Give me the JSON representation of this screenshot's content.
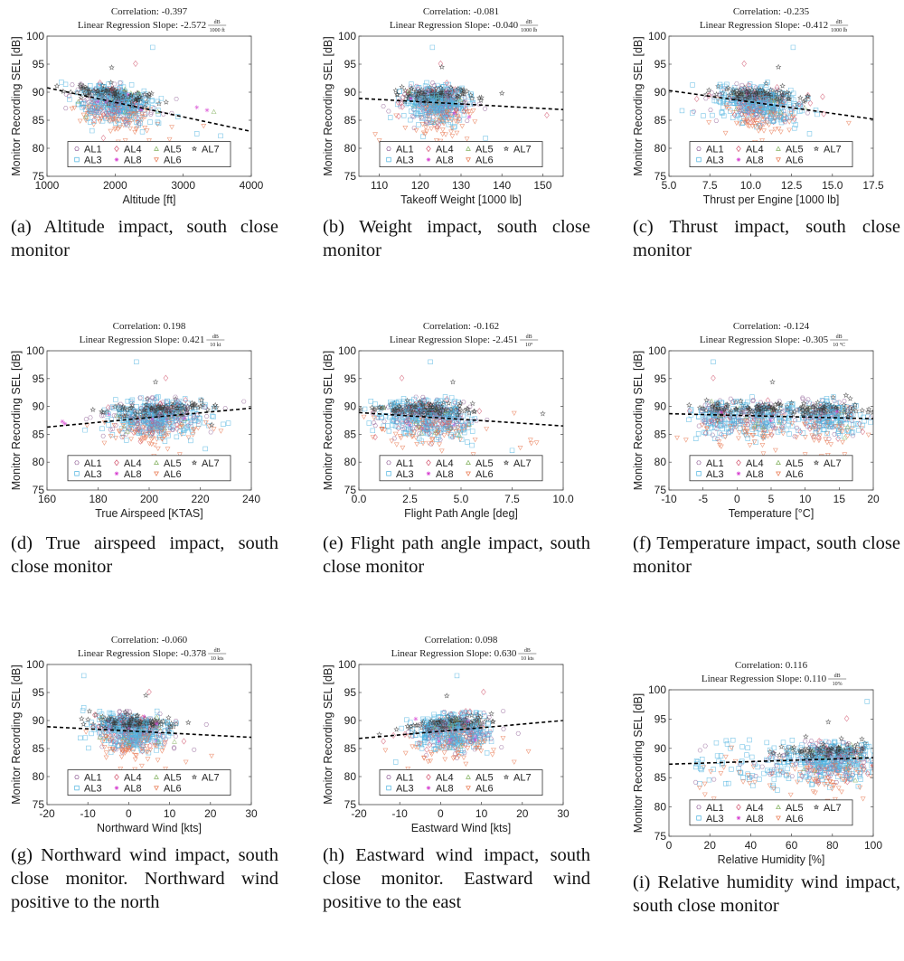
{
  "series_legend": [
    {
      "name": "AL1",
      "marker": "hexagon",
      "color": "#9b6fa0"
    },
    {
      "name": "AL4",
      "marker": "diamond",
      "color": "#d0506a"
    },
    {
      "name": "AL5",
      "marker": "triangle-up",
      "color": "#7fae5a"
    },
    {
      "name": "AL7",
      "marker": "star",
      "color": "#3a3a3a"
    },
    {
      "name": "AL3",
      "marker": "square",
      "color": "#4fb3e0"
    },
    {
      "name": "AL8",
      "marker": "asterisk",
      "color": "#d63fd0"
    },
    {
      "name": "AL6",
      "marker": "triangle-down",
      "color": "#e8774f"
    }
  ],
  "chart_data": [
    {
      "id": "a",
      "type": "scatter",
      "title_line1": "Correlation: -0.397",
      "title_line2": "Linear Regression Slope: -2.572",
      "title_unit_num": "dB",
      "title_unit_den": "1000 ft",
      "xlabel": "Altitude [ft]",
      "ylabel": "Monitor Recording SEL [dB]",
      "xlim": [
        1000,
        4000
      ],
      "ylim": [
        75,
        100
      ],
      "xticks": [
        1000,
        2000,
        3000,
        4000
      ],
      "xtick_labels": [
        "1000",
        "2000",
        "3000",
        "4000"
      ],
      "yticks": [
        75,
        80,
        85,
        90,
        95,
        100
      ],
      "cluster": {
        "x_center": 2000,
        "x_spread": 300,
        "y_center": 88,
        "y_spread": 2.0
      },
      "regression": {
        "x": [
          1000,
          4000
        ],
        "y": [
          90.8,
          83.0
        ]
      },
      "outliers": [
        [
          2550,
          98,
          "AL3"
        ],
        [
          2300,
          95.1,
          "AL4"
        ],
        [
          1950,
          94.4,
          "AL7"
        ],
        [
          3200,
          87.3,
          "AL8"
        ],
        [
          3350,
          86.8,
          "AL8"
        ],
        [
          3450,
          86.5,
          "AL5"
        ],
        [
          2900,
          88.8,
          "AL1"
        ],
        [
          3550,
          82.2,
          "AL3"
        ],
        [
          3200,
          82.6,
          "AL3"
        ],
        [
          3300,
          84,
          "AL6"
        ],
        [
          2500,
          81.4,
          "AL6"
        ],
        [
          2150,
          81.4,
          "AL6"
        ],
        [
          2800,
          81.6,
          "AL6"
        ]
      ],
      "caption": "(a) Altitude impact, south close monitor"
    },
    {
      "id": "b",
      "type": "scatter",
      "title_line1": "Correlation: -0.081",
      "title_line2": "Linear Regression Slope: -0.040",
      "title_unit_num": "dB",
      "title_unit_den": "1000 lb",
      "xlabel": "Takeoff Weight [1000 lb]",
      "ylabel": "Monitor Recording SEL [dB]",
      "xlim": [
        105,
        155
      ],
      "ylim": [
        75,
        100
      ],
      "xticks": [
        110,
        120,
        130,
        140,
        150
      ],
      "xtick_labels": [
        "110",
        "120",
        "130",
        "140",
        "150"
      ],
      "yticks": [
        75,
        80,
        85,
        90,
        95,
        100
      ],
      "cluster": {
        "x_center": 124,
        "x_spread": 4,
        "y_center": 88,
        "y_spread": 2.0
      },
      "regression": {
        "x": [
          105,
          155
        ],
        "y": [
          88.9,
          86.9
        ]
      },
      "outliers": [
        [
          123,
          98,
          "AL3"
        ],
        [
          125,
          95.1,
          "AL4"
        ],
        [
          125.3,
          94.5,
          "AL7"
        ],
        [
          140,
          89.8,
          "AL7"
        ],
        [
          151,
          85.9,
          "AL4"
        ],
        [
          136,
          81.8,
          "AL3"
        ],
        [
          109,
          82.5,
          "AL6"
        ],
        [
          110,
          81.4,
          "AL6"
        ],
        [
          124,
          81.4,
          "AL6"
        ],
        [
          125,
          81.3,
          "AL6"
        ],
        [
          111,
          87.5,
          "AL1"
        ],
        [
          114,
          90.3,
          "AL7"
        ]
      ],
      "caption": "(b) Weight impact, south close monitor"
    },
    {
      "id": "c",
      "type": "scatter",
      "title_line1": "Correlation: -0.235",
      "title_line2": "Linear Regression Slope: -0.412",
      "title_unit_num": "dB",
      "title_unit_den": "1000 lb",
      "xlabel": "Thrust per Engine [1000 lb]",
      "ylabel": "Monitor Recording SEL [dB]",
      "xlim": [
        5.0,
        17.5
      ],
      "ylim": [
        75,
        100
      ],
      "xticks": [
        5.0,
        7.5,
        10.0,
        12.5,
        15.0,
        17.5
      ],
      "xtick_labels": [
        "5.0",
        "7.5",
        "10.0",
        "12.5",
        "15.0",
        "17.5"
      ],
      "yticks": [
        75,
        80,
        85,
        90,
        95,
        100
      ],
      "cluster": {
        "x_center": 10.5,
        "x_spread": 1.2,
        "y_center": 88,
        "y_spread": 2.0
      },
      "regression": {
        "x": [
          5.0,
          17.5
        ],
        "y": [
          90.3,
          85.2
        ]
      },
      "outliers": [
        [
          12.6,
          98,
          "AL3"
        ],
        [
          9.6,
          95.1,
          "AL4"
        ],
        [
          11.7,
          94.5,
          "AL7"
        ],
        [
          5.8,
          86.7,
          "AL3"
        ],
        [
          7.1,
          85.8,
          "AL3"
        ],
        [
          6.7,
          88.8,
          "AL4"
        ],
        [
          14.4,
          89.2,
          "AL4"
        ],
        [
          16,
          84.5,
          "AL6"
        ],
        [
          13.6,
          82.6,
          "AL3"
        ],
        [
          10.7,
          81.4,
          "AL6"
        ],
        [
          7.9,
          84.9,
          "AL1"
        ]
      ],
      "caption": "(c) Thrust impact, south close monitor"
    },
    {
      "id": "d",
      "type": "scatter",
      "title_line1": "Correlation: 0.198",
      "title_line2": "Linear Regression Slope: 0.421",
      "title_unit_num": "dB",
      "title_unit_den": "10 kt",
      "xlabel": "True Airspeed [KTAS]",
      "ylabel": "Monitor Recording SEL [dB]",
      "xlim": [
        160,
        240
      ],
      "ylim": [
        75,
        100
      ],
      "xticks": [
        160,
        180,
        200,
        220,
        240
      ],
      "xtick_labels": [
        "160",
        "180",
        "200",
        "220",
        "240"
      ],
      "yticks": [
        75,
        80,
        85,
        90,
        95,
        100
      ],
      "cluster": {
        "x_center": 203,
        "x_spread": 9,
        "y_center": 88,
        "y_spread": 2.0
      },
      "regression": {
        "x": [
          160,
          240
        ],
        "y": [
          86.3,
          89.7
        ]
      },
      "outliers": [
        [
          195,
          98,
          "AL3"
        ],
        [
          206.5,
          95.1,
          "AL4"
        ],
        [
          202.5,
          94.4,
          "AL7"
        ],
        [
          166,
          87.3,
          "AL8"
        ],
        [
          167,
          86.9,
          "AL8"
        ],
        [
          177,
          88,
          "AL1"
        ],
        [
          182,
          84.7,
          "AL1"
        ],
        [
          231,
          87,
          "AL3"
        ],
        [
          229,
          86.8,
          "AL3"
        ],
        [
          222,
          82.4,
          "AL3"
        ],
        [
          212,
          81.4,
          "AL6"
        ],
        [
          224.5,
          86.7,
          "AL7"
        ]
      ],
      "caption": "(d) True airspeed impact, south close monitor"
    },
    {
      "id": "e",
      "type": "scatter",
      "title_line1": "Correlation: -0.162",
      "title_line2": "Linear Regression Slope: -2.451",
      "title_unit_num": "dB",
      "title_unit_den": "10°",
      "xlabel": "Flight Path Angle [deg]",
      "ylabel": "Monitor Recording SEL [dB]",
      "xlim": [
        0.0,
        10.0
      ],
      "ylim": [
        75,
        100
      ],
      "xticks": [
        0.0,
        2.5,
        5.0,
        7.5,
        10.0
      ],
      "xtick_labels": [
        "0.0",
        "2.5",
        "5.0",
        "7.5",
        "10.0"
      ],
      "yticks": [
        75,
        80,
        85,
        90,
        95,
        100
      ],
      "cluster": {
        "x_center": 3.3,
        "x_spread": 1.2,
        "y_center": 88,
        "y_spread": 2.0
      },
      "regression": {
        "x": [
          0.0,
          10.0
        ],
        "y": [
          88.9,
          86.5
        ]
      },
      "outliers": [
        [
          3.5,
          98,
          "AL3"
        ],
        [
          2.1,
          95.1,
          "AL4"
        ],
        [
          4.6,
          94.4,
          "AL7"
        ],
        [
          0.5,
          87,
          "AL3"
        ],
        [
          0.8,
          84.5,
          "AL4"
        ],
        [
          9,
          88.7,
          "AL7"
        ],
        [
          8.7,
          83.5,
          "AL6"
        ],
        [
          8.4,
          84,
          "AL6"
        ],
        [
          7.9,
          82.6,
          "AL6"
        ],
        [
          5.6,
          81.4,
          "AL6"
        ],
        [
          7.5,
          82.1,
          "AL3"
        ],
        [
          7.6,
          88.8,
          "AL6"
        ]
      ],
      "caption": "(e) Flight path angle impact, south close monitor"
    },
    {
      "id": "f",
      "type": "scatter",
      "title_line1": "Correlation: -0.124",
      "title_line2": "Linear Regression Slope: -0.305",
      "title_unit_num": "dB",
      "title_unit_den": "10 °C",
      "xlabel": "Temperature [°C]",
      "ylabel": "Monitor Recording SEL [dB]",
      "xlim": [
        -10,
        20
      ],
      "ylim": [
        75,
        100
      ],
      "xticks": [
        -10,
        -5,
        0,
        5,
        10,
        15,
        20
      ],
      "xtick_labels": [
        "-10",
        "-5",
        "0",
        "5",
        "10",
        "15",
        "20"
      ],
      "yticks": [
        75,
        80,
        85,
        90,
        95,
        100
      ],
      "cluster_groups": [
        {
          "x_center": -2,
          "x_spread": 2.5,
          "y_center": 88,
          "y_spread": 2.0
        },
        {
          "x_center": 4,
          "x_spread": 1.6,
          "y_center": 88,
          "y_spread": 2.0
        },
        {
          "x_center": 13,
          "x_spread": 3,
          "y_center": 88,
          "y_spread": 2.2
        }
      ],
      "regression": {
        "x": [
          -10,
          20
        ],
        "y": [
          88.7,
          87.8
        ]
      },
      "outliers": [
        [
          -3.5,
          98,
          "AL3"
        ],
        [
          -3.5,
          95.1,
          "AL4"
        ],
        [
          5.2,
          94.4,
          "AL7"
        ],
        [
          -8.8,
          84.4,
          "AL6"
        ],
        [
          -7.5,
          84,
          "AL6"
        ],
        [
          -7,
          89.2,
          "AL4"
        ],
        [
          16,
          92,
          "AL7"
        ],
        [
          15.8,
          81.4,
          "AL6"
        ],
        [
          10,
          81.4,
          "AL6"
        ],
        [
          19.3,
          84.9,
          "AL6"
        ]
      ],
      "caption": "(f) Temperature impact, south close monitor"
    },
    {
      "id": "g",
      "type": "scatter",
      "title_line1": "Correlation: -0.060",
      "title_line2": "Linear Regression Slope: -0.378",
      "title_unit_num": "dB",
      "title_unit_den": "10 kts",
      "xlabel": "Northward Wind [kts]",
      "ylabel": "Monitor Recording SEL [dB]",
      "xlim": [
        -20,
        30
      ],
      "ylim": [
        75,
        100
      ],
      "xticks": [
        -20,
        -10,
        0,
        10,
        20,
        30
      ],
      "xtick_labels": [
        "-20",
        "-10",
        "0",
        "10",
        "20",
        "30"
      ],
      "yticks": [
        75,
        80,
        85,
        90,
        95,
        100
      ],
      "cluster": {
        "x_center": 1,
        "x_spread": 4.5,
        "y_center": 88,
        "y_spread": 2.0
      },
      "regression": {
        "x": [
          -20,
          30
        ],
        "y": [
          88.9,
          87.0
        ]
      },
      "outliers": [
        [
          -11,
          98,
          "AL3"
        ],
        [
          5,
          95.1,
          "AL4"
        ],
        [
          4.2,
          94.5,
          "AL7"
        ],
        [
          -11,
          92.3,
          "AL3"
        ],
        [
          19,
          89.3,
          "AL1"
        ],
        [
          16,
          84.8,
          "AL1"
        ],
        [
          14,
          82.6,
          "AL6"
        ],
        [
          9,
          81.4,
          "AL6"
        ],
        [
          1.5,
          81.3,
          "AL6"
        ],
        [
          -2,
          81.4,
          "AL6"
        ],
        [
          13.5,
          86.3,
          "AL4"
        ]
      ],
      "caption": "(g) Northward wind impact, south close monitor. Northward wind positive to the north"
    },
    {
      "id": "h",
      "type": "scatter",
      "title_line1": "Correlation: 0.098",
      "title_line2": "Linear Regression Slope: 0.630",
      "title_unit_num": "dB",
      "title_unit_den": "10 kts",
      "xlabel": "Eastward Wind [kts]",
      "ylabel": "Monitor Recording SEL [dB]",
      "xlim": [
        -20,
        30
      ],
      "ylim": [
        75,
        100
      ],
      "xticks": [
        -20,
        -10,
        0,
        10,
        20,
        30
      ],
      "xtick_labels": [
        "-20",
        "-10",
        "0",
        "10",
        "20",
        "30"
      ],
      "yticks": [
        75,
        80,
        85,
        90,
        95,
        100
      ],
      "cluster": {
        "x_center": 3,
        "x_spread": 5,
        "y_center": 88,
        "y_spread": 2.0
      },
      "regression": {
        "x": [
          -20,
          30
        ],
        "y": [
          86.8,
          90.0
        ]
      },
      "outliers": [
        [
          4,
          98,
          "AL3"
        ],
        [
          10.5,
          95.1,
          "AL4"
        ],
        [
          1.5,
          94.4,
          "AL7"
        ],
        [
          -14,
          86.3,
          "AL4"
        ],
        [
          -13.5,
          84.7,
          "AL6"
        ],
        [
          -11,
          82.6,
          "AL3"
        ],
        [
          -8,
          81.4,
          "AL6"
        ],
        [
          21.5,
          84.5,
          "AL6"
        ],
        [
          18,
          82.6,
          "AL6"
        ],
        [
          19,
          87.7,
          "AL1"
        ],
        [
          -15,
          87.5,
          "AL7"
        ]
      ],
      "caption": "(h) Eastward wind impact, south close monitor. Eastward wind positive to the east"
    },
    {
      "id": "i",
      "type": "scatter",
      "title_line1": "Correlation: 0.116",
      "title_line2": "Linear Regression Slope: 0.110",
      "title_unit_num": "dB",
      "title_unit_den": "10%",
      "xlabel": "Relative Humidity [%]",
      "ylabel": "Monitor Recording SEL [dB]",
      "xlim": [
        0,
        100
      ],
      "ylim": [
        75,
        100
      ],
      "xticks": [
        0,
        20,
        40,
        60,
        80,
        100
      ],
      "xtick_labels": [
        "0",
        "20",
        "40",
        "60",
        "80",
        "100"
      ],
      "yticks": [
        75,
        80,
        85,
        90,
        95,
        100
      ],
      "cluster": {
        "x_center": 80,
        "x_spread": 12,
        "y_center": 88,
        "y_spread": 2.2
      },
      "cluster_sparse": {
        "x_center": 35,
        "x_spread": 14,
        "y_center": 87,
        "y_spread": 2.0
      },
      "regression": {
        "x": [
          0,
          100
        ],
        "y": [
          87.3,
          88.4
        ]
      },
      "outliers": [
        [
          97,
          98,
          "AL3"
        ],
        [
          87,
          95.1,
          "AL4"
        ],
        [
          78,
          94.5,
          "AL7"
        ],
        [
          67,
          92,
          "AL7"
        ],
        [
          28,
          91.3,
          "AL3"
        ],
        [
          22,
          81.4,
          "AL6"
        ],
        [
          95,
          81.4,
          "AL6"
        ],
        [
          15,
          83.3,
          "AL6"
        ],
        [
          22,
          84.7,
          "AL1"
        ]
      ],
      "caption": "(i) Relative humidity wind impact, south close monitor"
    }
  ]
}
